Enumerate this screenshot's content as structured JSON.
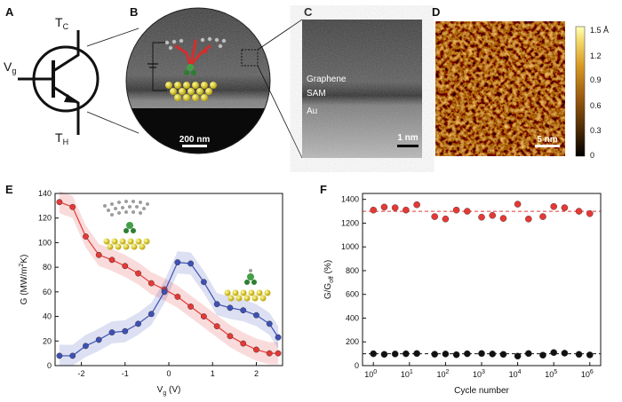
{
  "panels": {
    "A": {
      "label": "A",
      "tc_base": "T",
      "tc_sub": "C",
      "vg_base": "V",
      "vg_sub": "g",
      "th_base": "T",
      "th_sub": "H"
    },
    "B": {
      "label": "B",
      "scalebar": "200 nm"
    },
    "C": {
      "label": "C",
      "scalebar": "1 nm",
      "layers": [
        "Graphene",
        "SAM",
        "Au"
      ]
    },
    "D": {
      "label": "D",
      "scalebar": "5 nm"
    },
    "E": {
      "label": "E"
    },
    "F": {
      "label": "F"
    }
  },
  "colorbar": {
    "ticks": [
      "1.5 Å",
      "1.2",
      "0.9",
      "0.6",
      "0.3",
      "0"
    ],
    "colors": [
      "#000000",
      "#4a2a06",
      "#9a5b0e",
      "#d99a25",
      "#f4dd70",
      "#ffffb8"
    ]
  },
  "colors": {
    "red": "#e53935",
    "blue": "#3f51b5",
    "black": "#111111"
  },
  "chart_data": [
    {
      "type": "line",
      "panel": "E",
      "xlabel_base": "V",
      "xlabel_sub": "g",
      "xlabel_tail": " (V)",
      "ylabel_main": "G (MW/m",
      "ylabel_sup": "2",
      "ylabel_tail": "K)",
      "xlim": [
        -2.6,
        2.6
      ],
      "ylim": [
        0,
        140
      ],
      "xticks": [
        -2,
        -1,
        0,
        1,
        2
      ],
      "xtick_labels": [
        "-2",
        "-1",
        "0",
        "1",
        "2"
      ],
      "yticks": [
        0,
        20,
        40,
        60,
        80,
        100,
        120,
        140
      ],
      "ytick_labels": [
        "0",
        "20",
        "40",
        "60",
        "80",
        "100",
        "120",
        "140"
      ],
      "series": [
        {
          "color": "#e53935",
          "x": [
            -2.5,
            -2.2,
            -1.9,
            -1.6,
            -1.3,
            -1.0,
            -0.7,
            -0.4,
            -0.1,
            0.2,
            0.5,
            0.8,
            1.1,
            1.4,
            1.7,
            2.0,
            2.3,
            2.5
          ],
          "y": [
            133,
            129,
            105,
            90,
            86,
            81,
            75,
            67,
            62,
            56,
            48,
            40,
            32,
            24,
            18,
            13,
            10,
            10
          ]
        },
        {
          "color": "#3f51b5",
          "x": [
            -2.5,
            -2.2,
            -1.9,
            -1.6,
            -1.3,
            -1.0,
            -0.7,
            -0.4,
            -0.1,
            0.2,
            0.5,
            0.8,
            1.1,
            1.4,
            1.7,
            2.0,
            2.3,
            2.5
          ],
          "y": [
            8,
            8,
            16,
            21,
            27,
            28,
            34,
            42,
            60,
            84,
            83,
            68,
            50,
            47,
            45,
            41,
            34,
            23
          ]
        }
      ]
    },
    {
      "type": "scatter",
      "panel": "F",
      "xlabel": "Cycle number",
      "ylabel_main": "G/G",
      "ylabel_sub": "off",
      "ylabel_tail": " (%)",
      "xscale": "log",
      "xlim": [
        0.5,
        2000000
      ],
      "ylim": [
        0,
        1450
      ],
      "xtick_exps": [
        "0",
        "1",
        "2",
        "3",
        "4",
        "5",
        "6"
      ],
      "yticks": [
        0,
        200,
        400,
        600,
        800,
        1000,
        1200,
        1400
      ],
      "ytick_labels": [
        "0",
        "200",
        "400",
        "600",
        "800",
        "1000",
        "1200",
        "1400"
      ],
      "refs": [
        1300,
        100
      ],
      "series": [
        {
          "color": "#e53935",
          "x": [
            1,
            2,
            4,
            8,
            16,
            50,
            100,
            200,
            400,
            1000,
            2000,
            4000,
            10000,
            20000,
            50000,
            100000,
            200000,
            500000,
            1000000
          ],
          "y": [
            1310,
            1335,
            1330,
            1310,
            1355,
            1255,
            1235,
            1310,
            1300,
            1250,
            1265,
            1240,
            1360,
            1235,
            1255,
            1340,
            1330,
            1300,
            1280
          ]
        },
        {
          "color": "#111111",
          "x": [
            1,
            2,
            4,
            8,
            16,
            50,
            100,
            200,
            400,
            1000,
            2000,
            4000,
            10000,
            20000,
            50000,
            100000,
            200000,
            500000,
            1000000
          ],
          "y": [
            100,
            95,
            98,
            100,
            102,
            96,
            98,
            92,
            100,
            102,
            98,
            95,
            80,
            102,
            88,
            110,
            105,
            95,
            90
          ]
        }
      ]
    }
  ]
}
